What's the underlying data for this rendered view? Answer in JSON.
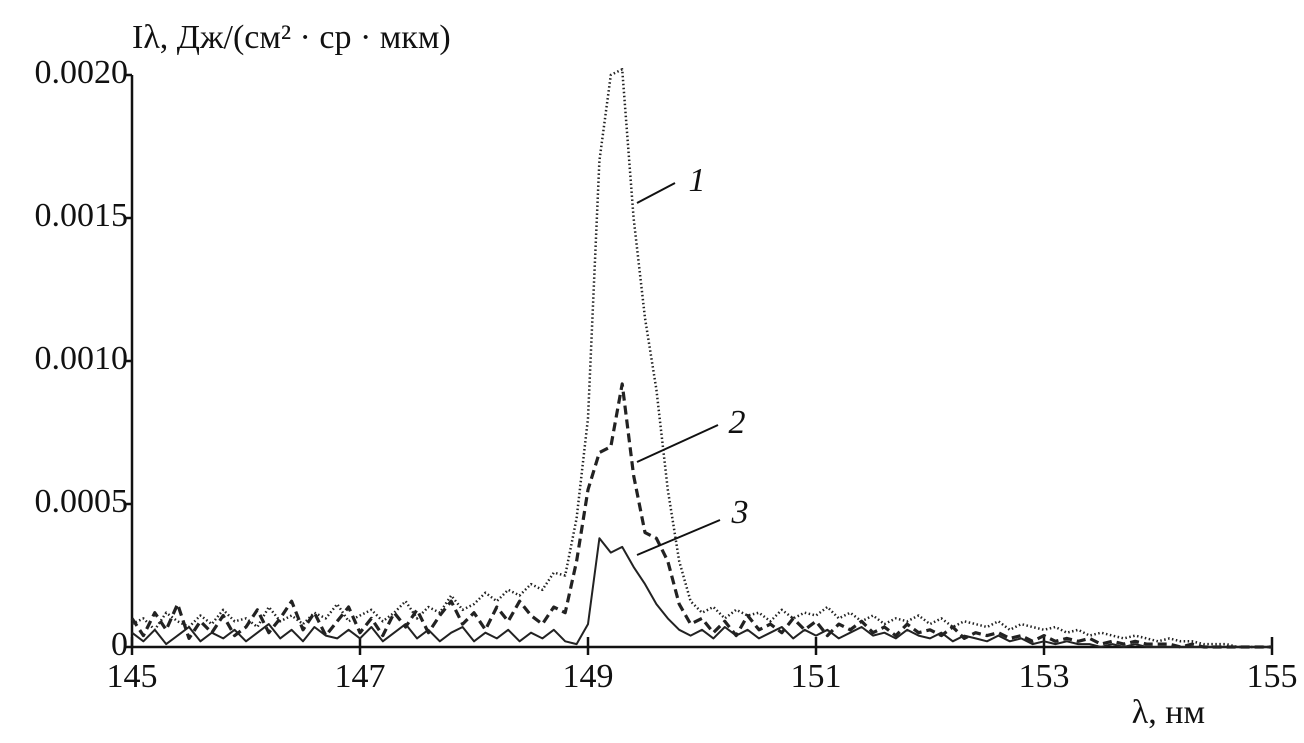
{
  "chart_data": {
    "type": "line",
    "y_label": "Iλ, Дж/(см² · ср · мкм)",
    "x_label": "λ, нм",
    "x": [
      145.0,
      145.1,
      145.2,
      145.3,
      145.4,
      145.5,
      145.6,
      145.7,
      145.8,
      145.9,
      146.0,
      146.1,
      146.2,
      146.3,
      146.4,
      146.5,
      146.6,
      146.7,
      146.8,
      146.9,
      147.0,
      147.1,
      147.2,
      147.3,
      147.4,
      147.5,
      147.6,
      147.7,
      147.8,
      147.9,
      148.0,
      148.1,
      148.2,
      148.3,
      148.4,
      148.5,
      148.6,
      148.7,
      148.8,
      148.9,
      149.0,
      149.1,
      149.2,
      149.3,
      149.4,
      149.5,
      149.6,
      149.7,
      149.8,
      149.9,
      150.0,
      150.1,
      150.2,
      150.3,
      150.4,
      150.5,
      150.6,
      150.7,
      150.8,
      150.9,
      151.0,
      151.1,
      151.2,
      151.3,
      151.4,
      151.5,
      151.6,
      151.7,
      151.8,
      151.9,
      152.0,
      152.1,
      152.2,
      152.3,
      152.4,
      152.5,
      152.6,
      152.7,
      152.8,
      152.9,
      153.0,
      153.1,
      153.2,
      153.3,
      153.4,
      153.5,
      153.6,
      153.7,
      153.8,
      153.9,
      154.0,
      154.1,
      154.2,
      154.3,
      154.4,
      154.5,
      154.6,
      154.7,
      154.8,
      154.9,
      155.0
    ],
    "series": [
      {
        "name": "1",
        "color": "#222222",
        "dash": "dotted",
        "values": [
          8e-05,
          0.0001,
          6e-05,
          0.00012,
          9e-05,
          7e-05,
          0.00011,
          8e-05,
          0.00013,
          9e-05,
          0.0001,
          7e-05,
          0.00014,
          9e-05,
          0.00011,
          8e-05,
          0.00012,
          0.0001,
          0.00015,
          9e-05,
          0.00011,
          0.00013,
          9e-05,
          0.00012,
          0.00016,
          0.0001,
          0.00014,
          0.00012,
          0.00018,
          0.00013,
          0.00015,
          0.00019,
          0.00016,
          0.0002,
          0.00018,
          0.00022,
          0.0002,
          0.00026,
          0.00025,
          0.00045,
          0.0008,
          0.0017,
          0.002,
          0.00202,
          0.0015,
          0.00115,
          0.0009,
          0.00055,
          0.0003,
          0.00016,
          0.00012,
          0.00014,
          0.0001,
          0.00013,
          0.00011,
          0.00012,
          9e-05,
          0.00013,
          0.0001,
          0.00012,
          0.00011,
          0.00014,
          0.0001,
          0.00012,
          9e-05,
          0.00011,
          8e-05,
          0.0001,
          9e-05,
          0.00011,
          8e-05,
          0.0001,
          7e-05,
          9e-05,
          8e-05,
          7e-05,
          9e-05,
          6e-05,
          8e-05,
          7e-05,
          6e-05,
          7e-05,
          5e-05,
          6e-05,
          4e-05,
          5e-05,
          4e-05,
          3e-05,
          4e-05,
          3e-05,
          2e-05,
          3e-05,
          2e-05,
          2e-05,
          1e-05,
          1e-05,
          1e-05,
          0,
          0,
          0,
          0
        ]
      },
      {
        "name": "2",
        "color": "#222222",
        "dash": "dashed",
        "values": [
          0.0001,
          4e-05,
          0.00012,
          6e-05,
          0.00015,
          3e-05,
          9e-05,
          5e-05,
          0.00011,
          4e-05,
          7e-05,
          0.00013,
          5e-05,
          0.0001,
          0.00016,
          6e-05,
          0.00012,
          4e-05,
          9e-05,
          0.00014,
          5e-05,
          0.0001,
          4e-05,
          0.00012,
          7e-05,
          0.00013,
          5e-05,
          0.00011,
          0.00016,
          8e-05,
          0.00012,
          6e-05,
          0.00014,
          9e-05,
          0.00016,
          0.00011,
          8e-05,
          0.00014,
          0.00012,
          0.0003,
          0.00055,
          0.00068,
          0.0007,
          0.00092,
          0.0006,
          0.0004,
          0.00038,
          0.0003,
          0.00015,
          8e-05,
          0.0001,
          5e-05,
          9e-05,
          4e-05,
          0.00011,
          6e-05,
          8e-05,
          5e-05,
          0.0001,
          6e-05,
          9e-05,
          4e-05,
          8e-05,
          6e-05,
          9e-05,
          5e-05,
          7e-05,
          4e-05,
          8e-05,
          5e-05,
          6e-05,
          4e-05,
          7e-05,
          3e-05,
          5e-05,
          4e-05,
          5e-05,
          3e-05,
          4e-05,
          2e-05,
          4e-05,
          2e-05,
          3e-05,
          2e-05,
          3e-05,
          1e-05,
          2e-05,
          1e-05,
          2e-05,
          1e-05,
          1e-05,
          1e-05,
          0,
          1e-05,
          0,
          0,
          0,
          0,
          0,
          0,
          0
        ]
      },
      {
        "name": "3",
        "color": "#222222",
        "dash": "solid",
        "values": [
          5e-05,
          2e-05,
          6e-05,
          1e-05,
          4e-05,
          7e-05,
          2e-05,
          5e-05,
          3e-05,
          6e-05,
          2e-05,
          5e-05,
          8e-05,
          3e-05,
          6e-05,
          2e-05,
          7e-05,
          4e-05,
          3e-05,
          6e-05,
          3e-05,
          7e-05,
          2e-05,
          5e-05,
          8e-05,
          3e-05,
          6e-05,
          2e-05,
          5e-05,
          7e-05,
          2e-05,
          5e-05,
          3e-05,
          6e-05,
          2e-05,
          5e-05,
          3e-05,
          6e-05,
          2e-05,
          1e-05,
          8e-05,
          0.00038,
          0.00033,
          0.00035,
          0.00028,
          0.00022,
          0.00015,
          0.0001,
          6e-05,
          4e-05,
          6e-05,
          3e-05,
          7e-05,
          4e-05,
          6e-05,
          3e-05,
          5e-05,
          7e-05,
          3e-05,
          6e-05,
          4e-05,
          6e-05,
          3e-05,
          5e-05,
          7e-05,
          4e-05,
          5e-05,
          3e-05,
          6e-05,
          4e-05,
          3e-05,
          5e-05,
          2e-05,
          4e-05,
          3e-05,
          2e-05,
          4e-05,
          2e-05,
          3e-05,
          1e-05,
          2e-05,
          1e-05,
          2e-05,
          1e-05,
          1e-05,
          0,
          1e-05,
          0,
          1e-05,
          0,
          0,
          0,
          0,
          0,
          0,
          0,
          0,
          0,
          0,
          0,
          0
        ]
      }
    ],
    "xlim": [
      145,
      155
    ],
    "xticks": [
      145,
      147,
      149,
      151,
      153,
      155
    ],
    "ylim": [
      0,
      0.002
    ],
    "yticks": [
      0,
      0.0005,
      {
        "value": 0.001,
        "label": "0.0010"
      },
      0.0015,
      {
        "value": 0.002,
        "label": "0.0020"
      }
    ],
    "grid": false
  }
}
